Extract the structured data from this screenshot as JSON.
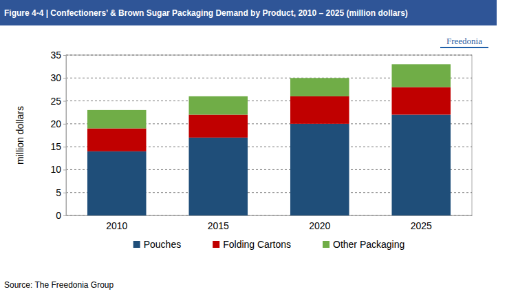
{
  "chart_data": {
    "type": "bar",
    "title": "Figure 4-4 | Confectioners’ & Brown Sugar Packaging Demand by Product, 2010 – 2025 (million dollars)",
    "y_label": "million dollars",
    "source": "Source: The Freedonia Group",
    "logo": "Freedonia",
    "categories": [
      "2010",
      "2015",
      "2020",
      "2025"
    ],
    "series": [
      {
        "name": "Pouches",
        "color": "#1f4e79",
        "values": [
          14,
          17,
          20,
          22
        ]
      },
      {
        "name": "Folding Cartons",
        "color": "#c00000",
        "values": [
          5,
          5,
          6,
          6
        ]
      },
      {
        "name": "Other Packaging",
        "color": "#70ad47",
        "values": [
          4,
          4,
          4,
          5
        ]
      }
    ],
    "ylim": [
      0,
      35
    ],
    "yticks": [
      0,
      5,
      10,
      15,
      20,
      25,
      30,
      35
    ],
    "grid": true,
    "stacked": true,
    "legend": "bottom"
  }
}
